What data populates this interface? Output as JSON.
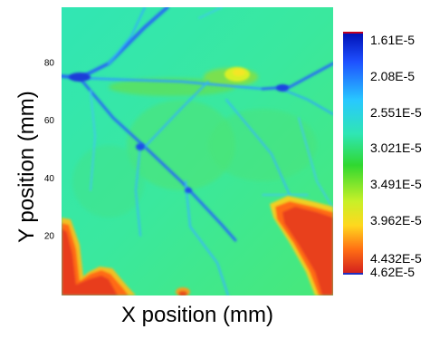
{
  "chart_data": {
    "type": "heatmap",
    "xlabel": "X position (mm)",
    "ylabel": "Y position (mm)",
    "y_ticks": [
      "80",
      "60",
      "40",
      "20"
    ],
    "y_tick_values": [
      80,
      60,
      40,
      20
    ],
    "ylim": [
      0,
      100
    ],
    "x_ticks": [],
    "colorbar": {
      "labels": [
        "1.61E-5",
        "2.08E-5",
        "2.551E-5",
        "3.021E-5",
        "3.491E-5",
        "3.962E-5",
        "4.432E-5",
        "4.62E-5"
      ],
      "values": [
        1.61e-05,
        2.08e-05,
        2.551e-05,
        3.021e-05,
        3.491e-05,
        3.962e-05,
        4.432e-05,
        4.62e-05
      ],
      "colormap": [
        "#0014c8",
        "#1e5aff",
        "#28d2ff",
        "#2fe6b0",
        "#2cd82c",
        "#f0f028",
        "#ff7814",
        "#d21e1e"
      ],
      "orientation": "reversed-jet: low values blue at top, high values red at bottom"
    }
  }
}
